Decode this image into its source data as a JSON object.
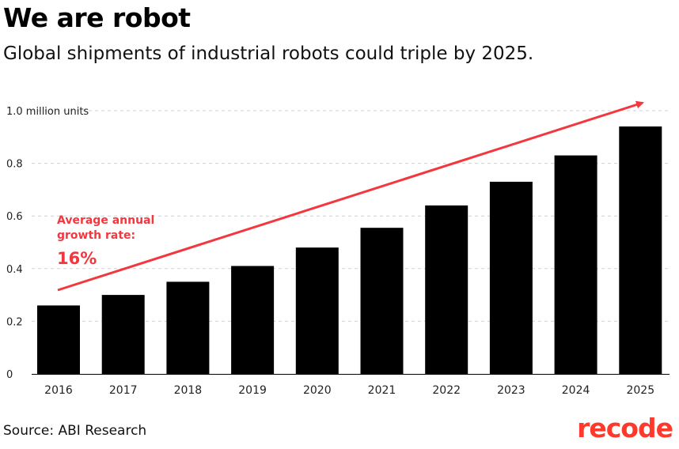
{
  "title": "We are robot",
  "subtitle": "Global shipments of industrial robots could triple by 2025.",
  "source": "Source: ABI Research",
  "logo": "recode",
  "annotation": {
    "line1": "Average annual",
    "line2": "growth rate:",
    "value": "16%"
  },
  "colors": {
    "bar": "#000000",
    "accent": "#f2373f",
    "logo": "#ff3a2d",
    "grid": "#cfcfcf"
  },
  "chart_data": {
    "type": "bar",
    "categories": [
      "2016",
      "2017",
      "2018",
      "2019",
      "2020",
      "2021",
      "2022",
      "2023",
      "2024",
      "2025"
    ],
    "values": [
      0.26,
      0.3,
      0.35,
      0.41,
      0.48,
      0.555,
      0.64,
      0.73,
      0.83,
      0.94
    ],
    "ylim": [
      0,
      1.0
    ],
    "yticks": [
      0,
      0.2,
      0.4,
      0.6,
      0.8,
      1.0
    ],
    "ytick_labels": [
      "0",
      "0.2",
      "0.4",
      "0.6",
      "0.8",
      "1.0 million units"
    ],
    "grid": true,
    "trend_arrow": true
  }
}
